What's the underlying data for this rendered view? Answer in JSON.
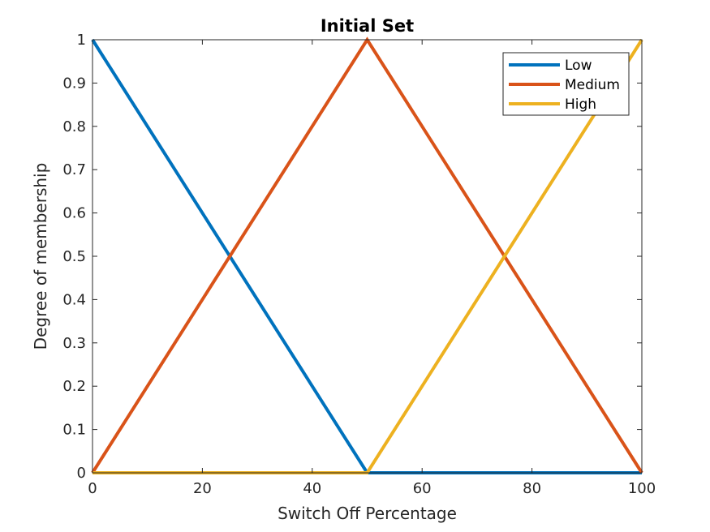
{
  "chart_data": {
    "type": "line",
    "title": "Initial Set",
    "xlabel": "Switch Off Percentage",
    "ylabel": "Degree of membership",
    "xlim": [
      0,
      100
    ],
    "ylim": [
      0,
      1
    ],
    "xticks": [
      0,
      20,
      40,
      60,
      80,
      100
    ],
    "yticks": [
      0,
      0.1,
      0.2,
      0.3,
      0.4,
      0.5,
      0.6,
      0.7,
      0.8,
      0.9,
      1
    ],
    "xtick_labels": [
      "0",
      "20",
      "40",
      "60",
      "80",
      "100"
    ],
    "ytick_labels": [
      "0",
      "0.1",
      "0.2",
      "0.3",
      "0.4",
      "0.5",
      "0.6",
      "0.7",
      "0.8",
      "0.9",
      "1"
    ],
    "grid": false,
    "legend_position": "top-right",
    "series": [
      {
        "name": "Low",
        "color": "#0072BD",
        "x": [
          0,
          50,
          100
        ],
        "y": [
          1,
          0,
          0
        ]
      },
      {
        "name": "Medium",
        "color": "#D95319",
        "x": [
          0,
          50,
          100
        ],
        "y": [
          0,
          1,
          0
        ]
      },
      {
        "name": "High",
        "color": "#EDB120",
        "x": [
          0,
          50,
          100
        ],
        "y": [
          0,
          0,
          1
        ]
      }
    ]
  }
}
